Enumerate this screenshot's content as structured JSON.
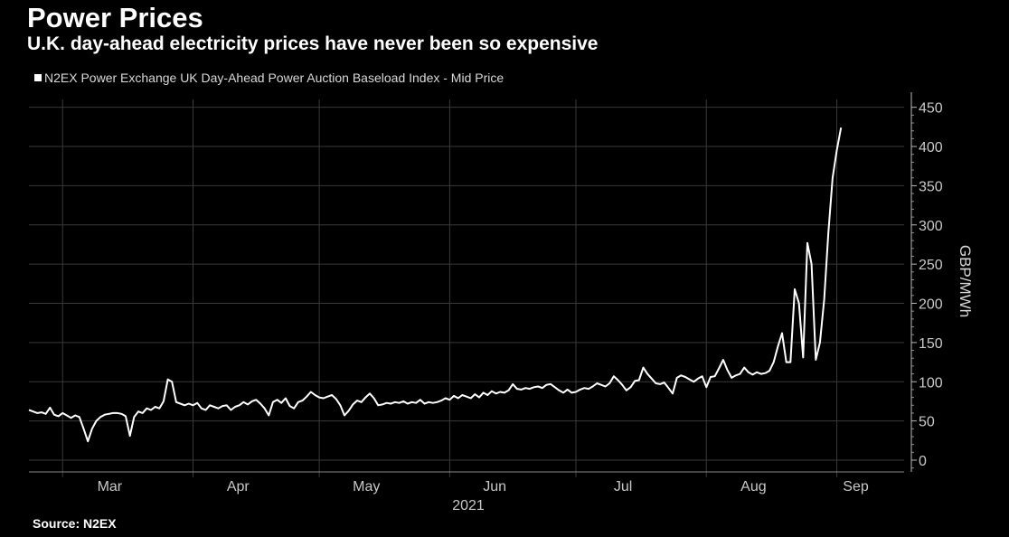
{
  "header": {
    "title": "Power Prices",
    "subtitle": "U.K. day-ahead electricity prices have never been so expensive"
  },
  "legend": {
    "label": "N2EX Power Exchange UK Day-Ahead Power Auction Baseload Index - Mid Price"
  },
  "footer": {
    "source": "Source: N2EX"
  },
  "colors": {
    "background": "#000000",
    "line": "#ffffff",
    "grid": "#3a3a3a"
  },
  "chart_data": {
    "type": "line",
    "title": "Power Prices",
    "subtitle": "U.K. day-ahead electricity prices have never been so expensive",
    "ylabel": "GBP/MWh",
    "xlabel": "",
    "year_label": "2021",
    "x_tick_labels": [
      "Mar",
      "Apr",
      "May",
      "Jun",
      "Jul",
      "Aug",
      "Sep"
    ],
    "x_ticks": [
      "2021-03-01",
      "2021-04-01",
      "2021-05-01",
      "2021-06-01",
      "2021-07-01",
      "2021-08-01",
      "2021-09-01"
    ],
    "y_ticks": [
      0,
      50,
      100,
      150,
      200,
      250,
      300,
      350,
      400,
      450
    ],
    "ylim": [
      -15,
      460
    ],
    "xlim": [
      "2021-02-21",
      "2021-09-17"
    ],
    "grid": true,
    "legend_position": "top-left",
    "series": [
      {
        "name": "N2EX Power Exchange UK Day-Ahead Power Auction Baseload Index - Mid Price",
        "color": "#ffffff",
        "points": [
          [
            "2021-02-21",
            64
          ],
          [
            "2021-02-22",
            62
          ],
          [
            "2021-02-23",
            60
          ],
          [
            "2021-02-24",
            61
          ],
          [
            "2021-02-25",
            59
          ],
          [
            "2021-02-26",
            67
          ],
          [
            "2021-02-27",
            58
          ],
          [
            "2021-02-28",
            56
          ],
          [
            "2021-03-01",
            60
          ],
          [
            "2021-03-02",
            57
          ],
          [
            "2021-03-03",
            54
          ],
          [
            "2021-03-04",
            57
          ],
          [
            "2021-03-05",
            55
          ],
          [
            "2021-03-06",
            40
          ],
          [
            "2021-03-07",
            24
          ],
          [
            "2021-03-08",
            40
          ],
          [
            "2021-03-09",
            50
          ],
          [
            "2021-03-10",
            55
          ],
          [
            "2021-03-11",
            58
          ],
          [
            "2021-03-12",
            59
          ],
          [
            "2021-03-13",
            60
          ],
          [
            "2021-03-14",
            60
          ],
          [
            "2021-03-15",
            59
          ],
          [
            "2021-03-16",
            56
          ],
          [
            "2021-03-17",
            31
          ],
          [
            "2021-03-18",
            55
          ],
          [
            "2021-03-19",
            62
          ],
          [
            "2021-03-20",
            60
          ],
          [
            "2021-03-21",
            66
          ],
          [
            "2021-03-22",
            64
          ],
          [
            "2021-03-23",
            68
          ],
          [
            "2021-03-24",
            66
          ],
          [
            "2021-03-25",
            75
          ],
          [
            "2021-03-26",
            103
          ],
          [
            "2021-03-27",
            100
          ],
          [
            "2021-03-28",
            74
          ],
          [
            "2021-03-29",
            72
          ],
          [
            "2021-03-30",
            70
          ],
          [
            "2021-03-31",
            72
          ],
          [
            "2021-04-01",
            70
          ],
          [
            "2021-04-02",
            73
          ],
          [
            "2021-04-03",
            66
          ],
          [
            "2021-04-04",
            64
          ],
          [
            "2021-04-05",
            70
          ],
          [
            "2021-04-06",
            68
          ],
          [
            "2021-04-07",
            66
          ],
          [
            "2021-04-08",
            69
          ],
          [
            "2021-04-09",
            70
          ],
          [
            "2021-04-10",
            64
          ],
          [
            "2021-04-11",
            68
          ],
          [
            "2021-04-12",
            70
          ],
          [
            "2021-04-13",
            74
          ],
          [
            "2021-04-14",
            71
          ],
          [
            "2021-04-15",
            75
          ],
          [
            "2021-04-16",
            77
          ],
          [
            "2021-04-17",
            72
          ],
          [
            "2021-04-18",
            66
          ],
          [
            "2021-04-19",
            57
          ],
          [
            "2021-04-20",
            74
          ],
          [
            "2021-04-21",
            77
          ],
          [
            "2021-04-22",
            73
          ],
          [
            "2021-04-23",
            79
          ],
          [
            "2021-04-24",
            69
          ],
          [
            "2021-04-25",
            66
          ],
          [
            "2021-04-26",
            74
          ],
          [
            "2021-04-27",
            76
          ],
          [
            "2021-04-28",
            81
          ],
          [
            "2021-04-29",
            87
          ],
          [
            "2021-04-30",
            83
          ],
          [
            "2021-05-01",
            80
          ],
          [
            "2021-05-02",
            79
          ],
          [
            "2021-05-03",
            81
          ],
          [
            "2021-05-04",
            83
          ],
          [
            "2021-05-05",
            78
          ],
          [
            "2021-05-06",
            70
          ],
          [
            "2021-05-07",
            57
          ],
          [
            "2021-05-08",
            63
          ],
          [
            "2021-05-09",
            71
          ],
          [
            "2021-05-10",
            76
          ],
          [
            "2021-05-11",
            74
          ],
          [
            "2021-05-12",
            80
          ],
          [
            "2021-05-13",
            85
          ],
          [
            "2021-05-14",
            79
          ],
          [
            "2021-05-15",
            70
          ],
          [
            "2021-05-16",
            71
          ],
          [
            "2021-05-17",
            73
          ],
          [
            "2021-05-18",
            72
          ],
          [
            "2021-05-19",
            74
          ],
          [
            "2021-05-20",
            73
          ],
          [
            "2021-05-21",
            75
          ],
          [
            "2021-05-22",
            72
          ],
          [
            "2021-05-23",
            74
          ],
          [
            "2021-05-24",
            73
          ],
          [
            "2021-05-25",
            77
          ],
          [
            "2021-05-26",
            72
          ],
          [
            "2021-05-27",
            74
          ],
          [
            "2021-05-28",
            73
          ],
          [
            "2021-05-29",
            74
          ],
          [
            "2021-05-30",
            76
          ],
          [
            "2021-05-31",
            79
          ],
          [
            "2021-06-01",
            77
          ],
          [
            "2021-06-02",
            82
          ],
          [
            "2021-06-03",
            79
          ],
          [
            "2021-06-04",
            83
          ],
          [
            "2021-06-05",
            81
          ],
          [
            "2021-06-06",
            79
          ],
          [
            "2021-06-07",
            84
          ],
          [
            "2021-06-08",
            80
          ],
          [
            "2021-06-09",
            86
          ],
          [
            "2021-06-10",
            83
          ],
          [
            "2021-06-11",
            88
          ],
          [
            "2021-06-12",
            85
          ],
          [
            "2021-06-13",
            87
          ],
          [
            "2021-06-14",
            86
          ],
          [
            "2021-06-15",
            89
          ],
          [
            "2021-06-16",
            97
          ],
          [
            "2021-06-17",
            91
          ],
          [
            "2021-06-18",
            90
          ],
          [
            "2021-06-19",
            92
          ],
          [
            "2021-06-20",
            91
          ],
          [
            "2021-06-21",
            93
          ],
          [
            "2021-06-22",
            94
          ],
          [
            "2021-06-23",
            92
          ],
          [
            "2021-06-24",
            96
          ],
          [
            "2021-06-25",
            97
          ],
          [
            "2021-06-26",
            93
          ],
          [
            "2021-06-27",
            89
          ],
          [
            "2021-06-28",
            86
          ],
          [
            "2021-06-29",
            90
          ],
          [
            "2021-06-30",
            86
          ],
          [
            "2021-07-01",
            87
          ],
          [
            "2021-07-02",
            90
          ],
          [
            "2021-07-03",
            92
          ],
          [
            "2021-07-04",
            91
          ],
          [
            "2021-07-05",
            94
          ],
          [
            "2021-07-06",
            98
          ],
          [
            "2021-07-07",
            96
          ],
          [
            "2021-07-08",
            94
          ],
          [
            "2021-07-09",
            98
          ],
          [
            "2021-07-10",
            107
          ],
          [
            "2021-07-11",
            102
          ],
          [
            "2021-07-12",
            96
          ],
          [
            "2021-07-13",
            89
          ],
          [
            "2021-07-14",
            93
          ],
          [
            "2021-07-15",
            101
          ],
          [
            "2021-07-16",
            102
          ],
          [
            "2021-07-17",
            118
          ],
          [
            "2021-07-18",
            110
          ],
          [
            "2021-07-19",
            104
          ],
          [
            "2021-07-20",
            98
          ],
          [
            "2021-07-21",
            97
          ],
          [
            "2021-07-22",
            99
          ],
          [
            "2021-07-23",
            92
          ],
          [
            "2021-07-24",
            85
          ],
          [
            "2021-07-25",
            105
          ],
          [
            "2021-07-26",
            108
          ],
          [
            "2021-07-27",
            106
          ],
          [
            "2021-07-28",
            103
          ],
          [
            "2021-07-29",
            100
          ],
          [
            "2021-07-30",
            104
          ],
          [
            "2021-07-31",
            107
          ],
          [
            "2021-08-01",
            93
          ],
          [
            "2021-08-02",
            106
          ],
          [
            "2021-08-03",
            107
          ],
          [
            "2021-08-04",
            117
          ],
          [
            "2021-08-05",
            128
          ],
          [
            "2021-08-06",
            115
          ],
          [
            "2021-08-07",
            105
          ],
          [
            "2021-08-08",
            108
          ],
          [
            "2021-08-09",
            110
          ],
          [
            "2021-08-10",
            118
          ],
          [
            "2021-08-11",
            112
          ],
          [
            "2021-08-12",
            109
          ],
          [
            "2021-08-13",
            112
          ],
          [
            "2021-08-14",
            110
          ],
          [
            "2021-08-15",
            111
          ],
          [
            "2021-08-16",
            114
          ],
          [
            "2021-08-17",
            125
          ],
          [
            "2021-08-18",
            145
          ],
          [
            "2021-08-19",
            162
          ],
          [
            "2021-08-20",
            125
          ],
          [
            "2021-08-21",
            125
          ],
          [
            "2021-08-22",
            218
          ],
          [
            "2021-08-23",
            200
          ],
          [
            "2021-08-24",
            131
          ],
          [
            "2021-08-25",
            277
          ],
          [
            "2021-08-26",
            250
          ],
          [
            "2021-08-27",
            128
          ],
          [
            "2021-08-28",
            150
          ],
          [
            "2021-08-29",
            205
          ],
          [
            "2021-08-30",
            290
          ],
          [
            "2021-08-31",
            360
          ],
          [
            "2021-09-01",
            395
          ],
          [
            "2021-09-02",
            424
          ]
        ]
      }
    ]
  }
}
